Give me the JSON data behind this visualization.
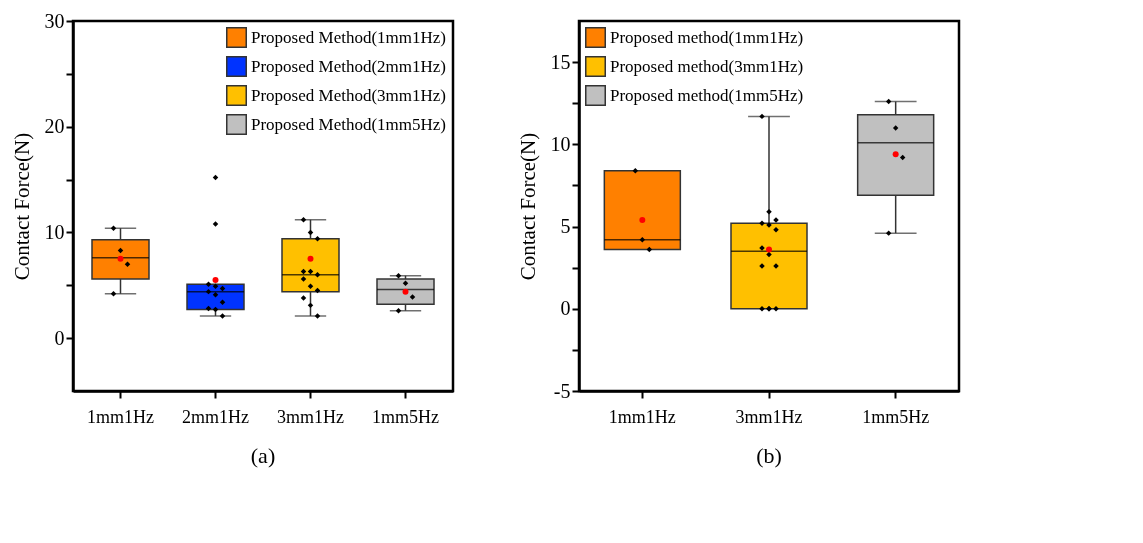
{
  "chart_data": [
    {
      "type": "box",
      "title": "(a)",
      "ylabel": "Contact Force(N)",
      "categories": [
        "1mm1Hz",
        "2mm1Hz",
        "3mm1Hz",
        "1mm5Hz"
      ],
      "ylim": [
        -5,
        30
      ],
      "yticks": [
        0,
        {
          "value": 5,
          "label": null
        },
        10,
        {
          "value": 15,
          "label": null
        },
        20,
        {
          "value": 25,
          "label": null
        },
        30
      ],
      "legend": "top right",
      "series": [
        {
          "name": "Proposed Method(1mm1Hz)",
          "color": "#ff8000",
          "boxes": [
            {
              "low": 4.2,
              "q1": 5.6,
              "median": 7.6,
              "q3": 9.3,
              "high": 10.4,
              "mean": 7.5
            },
            null,
            null,
            null
          ]
        },
        {
          "name": "Proposed Method(2mm1Hz)",
          "color": "#0033ff",
          "boxes": [
            null,
            {
              "low": 2.1,
              "q1": 2.7,
              "median": 4.4,
              "q3": 5.1,
              "high": 5.1,
              "mean": 5.5,
              "outliers": [
                15.2,
                10.8
              ]
            },
            null,
            null
          ]
        },
        {
          "name": "Proposed Method(3mm1Hz)",
          "color": "#ffc000",
          "boxes": [
            null,
            null,
            {
              "low": 2.1,
              "q1": 4.4,
              "median": 6.0,
              "q3": 9.4,
              "high": 11.2,
              "mean": 7.5
            },
            null
          ]
        },
        {
          "name": "Proposed Method(1mm5Hz)",
          "color": "#c0c0c0",
          "boxes": [
            null,
            null,
            null,
            {
              "low": 2.6,
              "q1": 3.2,
              "median": 4.6,
              "q3": 5.6,
              "high": 5.9,
              "mean": 4.4
            }
          ]
        },
        {
          "type": "scatter",
          "color": "#000000",
          "marker": "diamond",
          "x": [
            "1mm1Hz",
            "1mm1Hz",
            "1mm1Hz",
            "1mm1Hz",
            "2mm1Hz",
            "2mm1Hz",
            "2mm1Hz",
            "2mm1Hz",
            "2mm1Hz",
            "2mm1Hz",
            "2mm1Hz",
            "2mm1Hz",
            "2mm1Hz",
            "3mm1Hz",
            "3mm1Hz",
            "3mm1Hz",
            "3mm1Hz",
            "3mm1Hz",
            "3mm1Hz",
            "3mm1Hz",
            "3mm1Hz",
            "3mm1Hz",
            "3mm1Hz",
            "3mm1Hz",
            "3mm1Hz",
            "1mm5Hz",
            "1mm5Hz",
            "1mm5Hz",
            "1mm5Hz"
          ],
          "values": [
            10.4,
            8.3,
            7.0,
            4.2,
            5.1,
            4.9,
            4.7,
            4.4,
            4.1,
            3.4,
            2.8,
            2.7,
            2.1,
            11.2,
            10.0,
            9.4,
            6.3,
            6.3,
            6.0,
            5.6,
            4.9,
            4.5,
            3.8,
            3.1,
            2.1,
            5.9,
            5.2,
            3.9,
            2.6
          ]
        }
      ]
    },
    {
      "type": "box",
      "title": "(b)",
      "ylabel": "Contact Force(N)",
      "categories": [
        "1mm1Hz",
        "3mm1Hz",
        "1mm5Hz"
      ],
      "ylim": [
        -5,
        17.5
      ],
      "yticks": [
        -5,
        {
          "value": -2.5,
          "label": null
        },
        0,
        {
          "value": 2.5,
          "label": null
        },
        5,
        {
          "value": 7.5,
          "label": null
        },
        10,
        {
          "value": 12.5,
          "label": null
        },
        15
      ],
      "legend": "top left",
      "series": [
        {
          "name": "Proposed method(1mm1Hz)",
          "color": "#ff8000",
          "boxes": [
            {
              "low": 3.6,
              "q1": 3.6,
              "median": 4.2,
              "q3": 8.4,
              "high": 8.4,
              "mean": 5.4
            },
            null,
            null
          ]
        },
        {
          "name": "Proposed method(3mm1Hz)",
          "color": "#ffc000",
          "boxes": [
            null,
            {
              "low": 0,
              "q1": 0,
              "median": 3.5,
              "q3": 5.2,
              "high": 11.7,
              "mean": 3.6
            },
            null
          ]
        },
        {
          "name": "Proposed method(1mm5Hz)",
          "color": "#c0c0c0",
          "boxes": [
            null,
            null,
            {
              "low": 4.6,
              "q1": 6.9,
              "median": 10.1,
              "q3": 11.8,
              "high": 12.6,
              "mean": 9.4
            }
          ]
        },
        {
          "type": "scatter",
          "color": "#000000",
          "marker": "diamond",
          "x": [
            "1mm1Hz",
            "1mm1Hz",
            "1mm1Hz",
            "3mm1Hz",
            "3mm1Hz",
            "3mm1Hz",
            "3mm1Hz",
            "3mm1Hz",
            "3mm1Hz",
            "3mm1Hz",
            "3mm1Hz",
            "3mm1Hz",
            "3mm1Hz",
            "3mm1Hz",
            "3mm1Hz",
            "3mm1Hz",
            "3mm1Hz",
            "1mm5Hz",
            "1mm5Hz",
            "1mm5Hz",
            "1mm5Hz"
          ],
          "values": [
            8.4,
            4.2,
            3.6,
            11.7,
            5.9,
            5.4,
            5.2,
            5.1,
            4.8,
            3.7,
            3.3,
            2.6,
            2.6,
            0,
            0,
            0,
            0,
            12.6,
            11.0,
            9.2,
            4.6
          ]
        }
      ]
    }
  ]
}
